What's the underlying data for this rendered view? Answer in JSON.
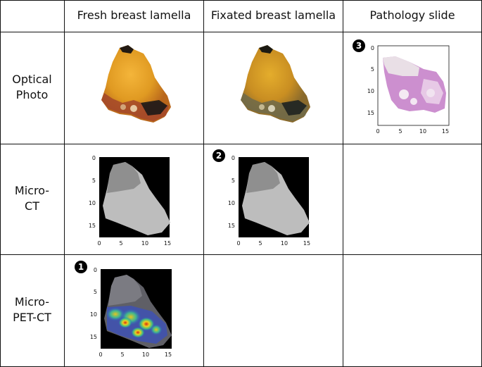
{
  "columns": [
    "Fresh breast lamella",
    "Fixated breast lamella",
    "Pathology slide"
  ],
  "rows": [
    {
      "label_line1": "Optical",
      "label_line2": "Photo"
    },
    {
      "label_line1": "Micro-",
      "label_line2": "CT"
    },
    {
      "label_line1": "Micro-",
      "label_line2": "PET-CT"
    }
  ],
  "badges": {
    "b1": "1",
    "b2": "2",
    "b3": "3"
  },
  "axes": {
    "x_ticks": [
      "0",
      "5",
      "10",
      "15"
    ],
    "y_ticks": [
      "0",
      "5",
      "10",
      "15"
    ]
  },
  "colors": {
    "grid": "#111111",
    "tissue_yellow": "#e2a126",
    "pink_stain": "#c98ac8"
  }
}
